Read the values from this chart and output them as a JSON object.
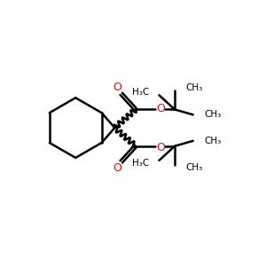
{
  "background_color": "#ffffff",
  "bond_color": "#000000",
  "oxygen_color": "#ff0000",
  "line_width": 1.8,
  "figsize": [
    3.0,
    3.0
  ],
  "dpi": 100,
  "xlim": [
    0,
    10
  ],
  "ylim": [
    0,
    10
  ]
}
